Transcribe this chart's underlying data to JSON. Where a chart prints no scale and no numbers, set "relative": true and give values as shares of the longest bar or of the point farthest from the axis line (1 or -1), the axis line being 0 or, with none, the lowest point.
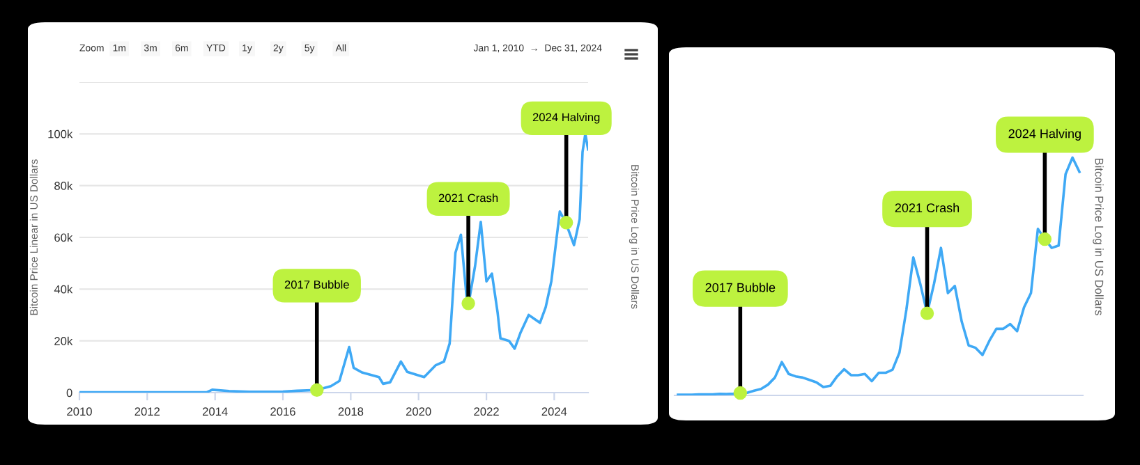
{
  "chart_data": [
    {
      "type": "line",
      "ylabel": "Bitcoin Price Linear in US Dollars",
      "y2label": "Bitcoin Price Log in US Dollars",
      "annotations": [
        "Zoom",
        "1m",
        "3m",
        "6m",
        "YTD",
        "1y",
        "2y",
        "5y",
        "All",
        "Jan 1, 2010",
        "→",
        "Dec 31, 2024",
        {
          "text": "2017 Bubble",
          "x": "2017-01",
          "y": 1000
        },
        {
          "text": "2021 Crash",
          "x": "2021-06-20",
          "y": 34500
        },
        {
          "text": "2024 Halving",
          "x": "2024-05-10",
          "y": 65700
        }
      ],
      "x": [
        "2010-01",
        "2011-06",
        "2013-01",
        "2013-10",
        "2013-12",
        "2014-06",
        "2015-01",
        "2016-01",
        "2016-06",
        "2017-01",
        "2017-06",
        "2017-09",
        "2017-12-15",
        "2018-02",
        "2018-05",
        "2018-11",
        "2018-12-15",
        "2019-03",
        "2019-06-25",
        "2019-09",
        "2020-03",
        "2020-07",
        "2020-10",
        "2020-12",
        "2021-01",
        "2021-02",
        "2021-04",
        "2021-06",
        "2021-06-20",
        "2021-07",
        "2021-09",
        "2021-11",
        "2022-01",
        "2022-03",
        "2022-05",
        "2022-06",
        "2022-09",
        "2022-11",
        "2023-01",
        "2023-04",
        "2023-08",
        "2023-10",
        "2023-12",
        "2024-03",
        "2024-05",
        "2024-08",
        "2024-10",
        "2024-11",
        "2024-12",
        "2024-12-31"
      ],
      "series": [
        {
          "color": "#3fa9f5",
          "values": [
            100,
            100,
            100,
            100,
            1100,
            600,
            300,
            400,
            700,
            1000,
            2500,
            4500,
            17600,
            9600,
            7800,
            6000,
            3400,
            4000,
            12000,
            8000,
            6000,
            10500,
            12000,
            19000,
            36000,
            54000,
            61000,
            37000,
            34500,
            36000,
            49000,
            66000,
            43000,
            46000,
            31000,
            21000,
            20000,
            17000,
            23000,
            30000,
            27000,
            33000,
            43000,
            70000,
            66000,
            57000,
            67000,
            93000,
            100000,
            94000
          ]
        }
      ],
      "xlim": [
        "2010-01-01",
        "2024-12-31"
      ],
      "xticks": [
        {
          "value": "2010-01-01",
          "label": "2010"
        },
        {
          "value": "2012-01-01",
          "label": "2012"
        },
        {
          "value": "2014-01-01",
          "label": "2014"
        },
        {
          "value": "2016-01-01",
          "label": "2016"
        },
        {
          "value": "2018-01-01",
          "label": "2018"
        },
        {
          "value": "2020-01-01",
          "label": "2020"
        },
        {
          "value": "2022-01-01",
          "label": "2022"
        },
        {
          "value": "2024-01-01",
          "label": "2024"
        }
      ],
      "ylim": [
        0,
        120000
      ],
      "yticks": [
        {
          "value": 0,
          "label": "0"
        },
        {
          "value": 20000,
          "label": "20k"
        },
        {
          "value": 40000,
          "label": "40k"
        },
        {
          "value": 60000,
          "label": "60k"
        },
        {
          "value": 80000,
          "label": "80k"
        },
        {
          "value": 100000,
          "label": "100k"
        },
        {
          "value": 120000,
          "label": null
        }
      ],
      "grid": "y",
      "marker": "none",
      "line_style": "solid"
    },
    {
      "type": "line",
      "relative": true,
      "y2label": "Bitcoin Price Log in US Dollars",
      "annotations": [
        {
          "text": "2017 Bubble",
          "y": 0.01
        },
        {
          "text": "2021 Crash",
          "y": 0.345
        },
        {
          "text": "2024 Halving",
          "y": 0.657
        }
      ],
      "categories": [
        null,
        null,
        null,
        null,
        null,
        null,
        null,
        null,
        null,
        null,
        null,
        null,
        null,
        null,
        null,
        null,
        null,
        null,
        null,
        null,
        null,
        null,
        null,
        null,
        null,
        null,
        null,
        null,
        null,
        null,
        null,
        null,
        null,
        null,
        null,
        null,
        null,
        null,
        null,
        null,
        null,
        null,
        null,
        null,
        null,
        null,
        null,
        null,
        null,
        null,
        null,
        null,
        null,
        null,
        null,
        null,
        null,
        null,
        null
      ],
      "series": [
        {
          "color": "#3fa9f5",
          "values": [
            0.003,
            0.0025,
            0.003,
            0.004,
            0.004,
            0.0045,
            0.0065,
            0.006,
            0.007,
            0.01,
            0.011,
            0.02,
            0.027,
            0.045,
            0.075,
            0.14,
            0.09,
            0.08,
            0.075,
            0.065,
            0.055,
            0.035,
            0.04,
            0.08,
            0.11,
            0.085,
            0.085,
            0.09,
            0.06,
            0.095,
            0.095,
            0.108,
            0.18,
            0.36,
            0.58,
            0.47,
            0.345,
            0.47,
            0.62,
            0.43,
            0.46,
            0.31,
            0.21,
            0.2,
            0.17,
            0.23,
            0.28,
            0.28,
            0.3,
            0.27,
            0.37,
            0.43,
            0.7,
            0.657,
            0.62,
            0.63,
            0.93,
            1,
            0.94
          ]
        }
      ],
      "tick_labels": false,
      "marker": "none",
      "line_style": "solid"
    }
  ]
}
